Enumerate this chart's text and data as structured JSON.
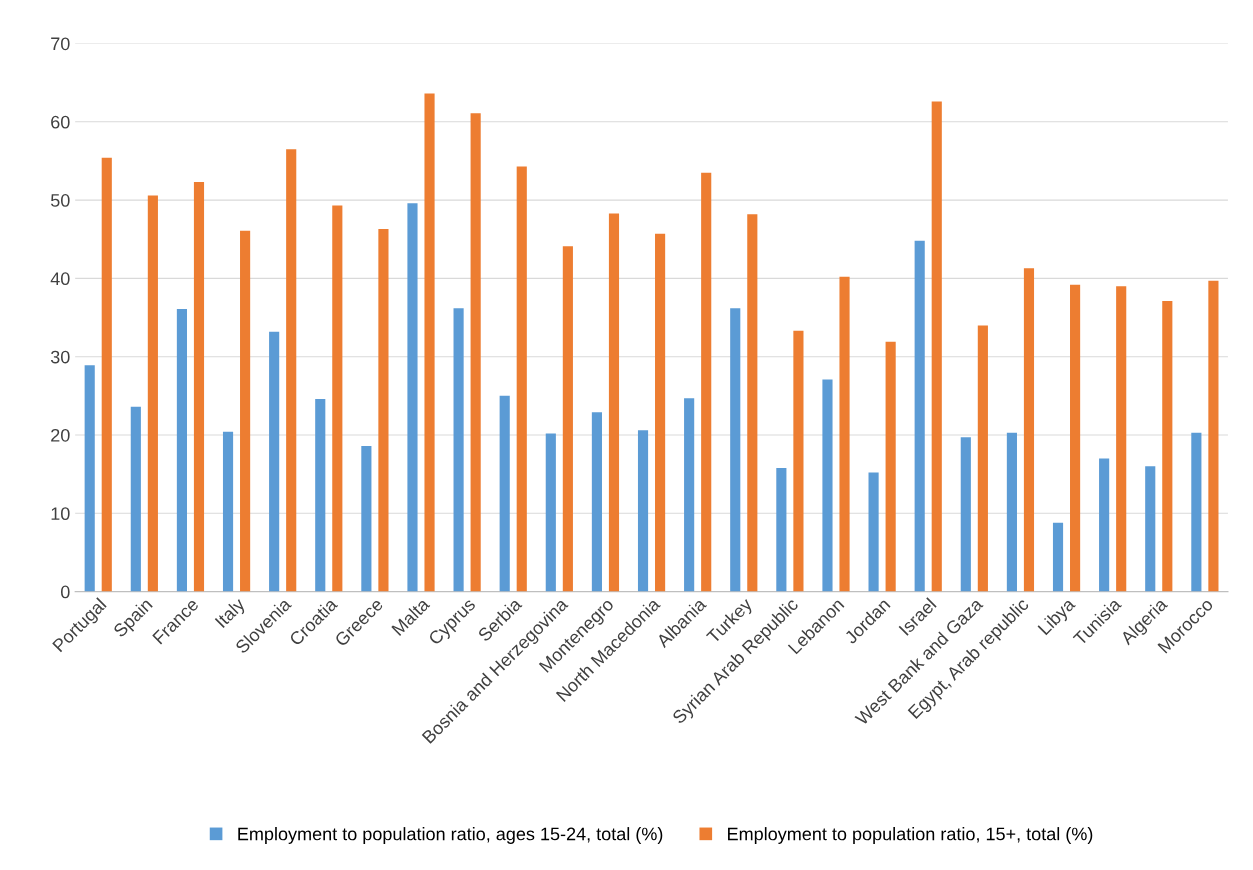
{
  "chart_data": {
    "type": "bar",
    "categories": [
      "Portugal",
      "Spain",
      "France",
      "Italy",
      "Slovenia",
      "Croatia",
      "Greece",
      "Malta",
      "Cyprus",
      "Serbia",
      "Bosnia and Herzegovina",
      "Montenegro",
      "North Macedonia",
      "Albania",
      "Turkey",
      "Syrian Arab Republic",
      "Lebanon",
      "Jordan",
      "Israel",
      "West Bank and Gaza",
      "Egypt, Arab republic",
      "Libya",
      "Tunisia",
      "Algeria",
      "Morocco"
    ],
    "series": [
      {
        "name": "Employment to population ratio, ages 15-24, total (%)",
        "color": "#5b9bd5",
        "values": [
          28.9,
          23.6,
          36.1,
          20.4,
          33.2,
          24.6,
          18.6,
          49.6,
          36.2,
          25.0,
          20.2,
          22.9,
          20.6,
          24.7,
          36.2,
          15.8,
          27.1,
          15.2,
          44.8,
          19.7,
          20.3,
          8.8,
          17.0,
          16.0,
          20.3
        ]
      },
      {
        "name": "Employment to population ratio, 15+, total (%)",
        "color": "#ed7d31",
        "values": [
          55.4,
          50.6,
          52.3,
          46.1,
          56.5,
          49.3,
          46.3,
          63.6,
          61.1,
          54.3,
          44.1,
          48.3,
          45.7,
          53.5,
          48.2,
          33.3,
          40.2,
          31.9,
          62.6,
          34.0,
          41.3,
          39.2,
          39.0,
          37.1,
          39.7
        ]
      }
    ],
    "ylim": [
      0,
      70
    ],
    "yticks": [
      0,
      10,
      20,
      30,
      40,
      50,
      60,
      70
    ],
    "grid": "y",
    "legend": "bottom"
  }
}
